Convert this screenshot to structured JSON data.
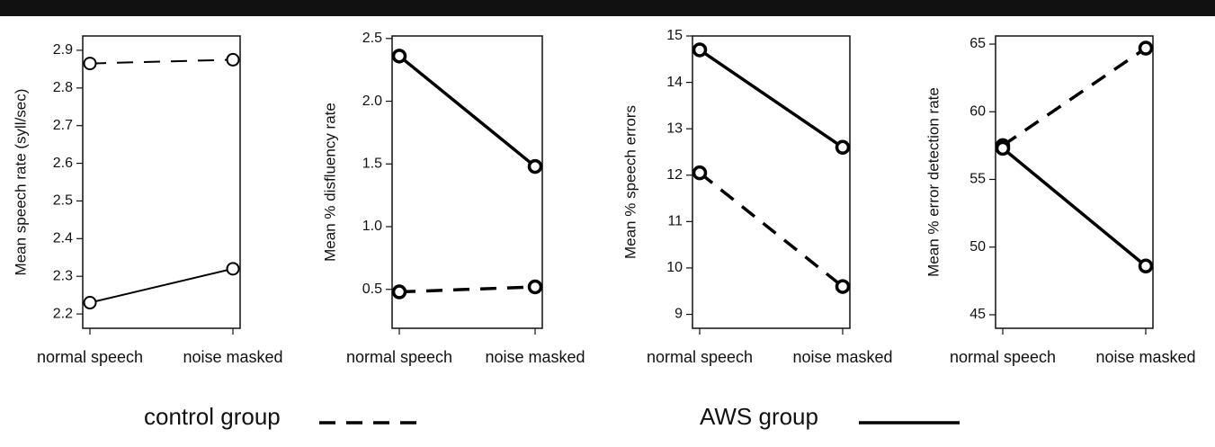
{
  "chart_data": [
    {
      "type": "line",
      "y_label": "Mean speech rate (syll/sec)",
      "categories": [
        "normal speech",
        "noise masked"
      ],
      "ylim": [
        2.162,
        2.938
      ],
      "yticks": [
        2.2,
        2.3,
        2.4,
        2.5,
        2.6,
        2.7,
        2.8,
        2.9
      ],
      "line_width": 2,
      "series": [
        {
          "name": "control group",
          "color": "#000000",
          "dash": "dashed",
          "values": [
            2.865,
            2.875
          ]
        },
        {
          "name": "AWS group",
          "color": "#000000",
          "dash": "solid",
          "values": [
            2.23,
            2.32
          ]
        }
      ]
    },
    {
      "type": "line",
      "y_label": "Mean % disfluency rate",
      "categories": [
        "normal speech",
        "noise masked"
      ],
      "ylim": [
        0.19,
        2.52
      ],
      "yticks": [
        0.5,
        {
          "value": 1,
          "label": "1.0"
        },
        1.5,
        {
          "value": 2,
          "label": "2.0"
        },
        2.5
      ],
      "line_width": 3.5,
      "series": [
        {
          "name": "control group",
          "color": "#000000",
          "dash": "dashed",
          "values": [
            0.48,
            0.52
          ]
        },
        {
          "name": "AWS group",
          "color": "#000000",
          "dash": "solid",
          "values": [
            2.36,
            1.48
          ]
        }
      ]
    },
    {
      "type": "line",
      "y_label": "Mean % speech errors",
      "categories": [
        "normal speech",
        "noise masked"
      ],
      "ylim": [
        8.7,
        15.0
      ],
      "yticks": [
        9,
        10,
        11,
        12,
        13,
        14,
        15
      ],
      "line_width": 3.5,
      "series": [
        {
          "name": "control group",
          "color": "#000000",
          "dash": "dashed",
          "values": [
            12.05,
            9.6
          ]
        },
        {
          "name": "AWS group",
          "color": "#000000",
          "dash": "solid",
          "values": [
            14.7,
            12.6
          ]
        }
      ]
    },
    {
      "type": "line",
      "y_label": "Mean % error detection rate",
      "categories": [
        "normal speech",
        "noise masked"
      ],
      "ylim": [
        44,
        65.6
      ],
      "yticks": [
        45,
        50,
        55,
        60,
        65
      ],
      "line_width": 3.5,
      "series": [
        {
          "name": "control group",
          "color": "#000000",
          "dash": "dashed",
          "values": [
            57.5,
            64.7
          ]
        },
        {
          "name": "AWS group",
          "color": "#000000",
          "dash": "solid",
          "values": [
            57.3,
            48.6
          ]
        }
      ]
    }
  ]
}
